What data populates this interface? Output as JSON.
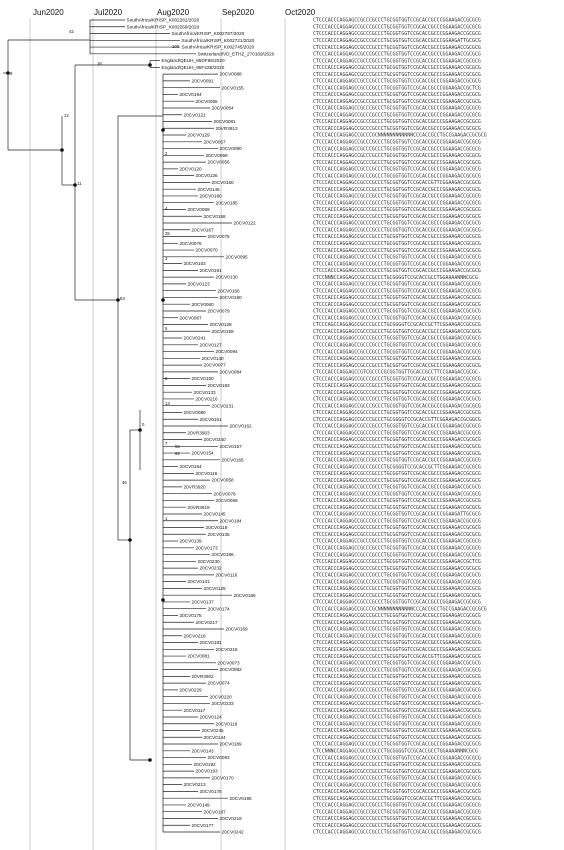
{
  "axis": {
    "months": [
      "Jun2020",
      "Jul2020",
      "Aug2020",
      "Sep2020",
      "Oct2020"
    ]
  },
  "support_values": [
    "8",
    "12",
    "11",
    "16",
    "42",
    "100",
    "63",
    "46",
    "0",
    "2",
    "4",
    "3",
    "5",
    "6",
    "7",
    "1",
    "13",
    "25",
    "55",
    "92"
  ],
  "tips": [
    "SouthAfrica/KRISP_K002281/2020",
    "SouthAfrica/KRISP_K002269/2020",
    "SouthAfrica/KRISP_K002787/2020",
    "SouthAfrica/KRISP_K002721/2020",
    "SouthAfrica/KRISP_K002745/2020",
    "Switzerland/VD_ETHZ_270169/2020",
    "England/QEUH_95DF86/2020",
    "England/QEUH_95F42B/2020",
    "20CV0088",
    "20CV0091",
    "20CV0155",
    "20CV0194",
    "20CV0055",
    "20CV0054",
    "20CV0121",
    "20CV0081",
    "20VR3913",
    "20CV0129",
    "20CV0057",
    "20CV0090",
    "20CV0059",
    "20CV0056",
    "20CV0120",
    "20CV0126",
    "20CV0160",
    "20CV0146",
    "20CV0180",
    "20CV0185",
    "20CV0069",
    "20CV0158",
    "20CV0122",
    "20CV0167",
    "20CV0075",
    "20CV0076",
    "20CV0070",
    "20CV0095",
    "20CV0153",
    "20CV0191",
    "20CV0130",
    "20CV0123",
    "20CV0166",
    "20CV0190",
    "20CV0060",
    "20CV0079",
    "20CV0067",
    "20CV0128",
    "20CV0159",
    "20CV0241",
    "20CV0127",
    "20CV0094",
    "20CV0140",
    "20CV0077",
    "20CV0084",
    "20CV0150",
    "20CV0183",
    "20CV0133",
    "20CV0216",
    "20CV0231",
    "20CV0080",
    "20CV0161",
    "20CV0162",
    "20VR3903",
    "20CV0240",
    "20CV0157",
    "20CV0154",
    "20CV0165",
    "20CV0164",
    "20CV0115",
    "20CV0058",
    "20VR3920",
    "20CV0078",
    "20CV0068",
    "20VR3919",
    "20CV0145",
    "20CV0184",
    "20CV0119",
    "20CV0135",
    "20CV0139",
    "20CV0173",
    "20CV0186",
    "20CV0230",
    "20CV0232",
    "20CV0116",
    "20CV0141",
    "20CV0125",
    "20CV0156",
    "20CV0137",
    "20CV0174",
    "20CV0175",
    "20CV0217",
    "20CV0169",
    "20CV0218",
    "20CV0181",
    "20CV0215",
    "20CV0081",
    "20CV0073",
    "20CV0082",
    "20VR3902",
    "20CV0074",
    "20CV0229",
    "20CV0220",
    "20CV0233",
    "20CV0117",
    "20CV0124",
    "20CV0118",
    "20CV0235",
    "20CV0144",
    "20CV0189",
    "20CV0143",
    "20CV0093",
    "20CV0192",
    "20CV0193",
    "20CV0170",
    "20CV0213",
    "20CV0178",
    "20CV0195",
    "20CV0149",
    "20CV0187",
    "20CV0219",
    "20CV0177",
    "20CV0242"
  ],
  "sequences": {
    "base": "CTCCCACCCAGGAGCCGCCCGCCCTGCGGTGGTCCGCACCGCCCGGAAGACCGCGCG",
    "variants": [
      "CTCCCACCCAGGAGCCGCCCGCCCTGCGGTGGTCCGCACCGCCCGGAAGACCGCTCG",
      "CTCCCACCCAGGAGCCGCCCGCCCTGCGGTGGTCCGCACCGCCCGGAAGACCGCGCG-",
      "CTCCCACCCAGGAGCCGTCGCCCCGCGGTGGTTGCACCGCCTTCCGAAGACCGCGC-",
      "CTCCCACCCAGGAGCCGCCCGCCCTGCGGTGGTCCGCACCGCCCGGAAGATTGCGCG",
      "CTCCCACCCAGGAGCCGCCCGCCCTGCGGTGGTCCGCACCGTTCGGAAGACCGCGCG",
      "CTCCCAGCCAGGAGCCGCCCGCCCTGCGGGGTCCGCACCGCTTCGGAAGACCGCGCG",
      "CTCCCACCCAGGAGCCGCCCGCCCTGCGGGGTCCGCACCGCTTCGGAAGACCGCGCG",
      "CTCCCACCCAGGAGCCGCCCGCNNNNNNNNNNNNCCCACCGCCTGCCGAAGACCGCGCG",
      "CTCCNNNCCAGGAGCCGCCCGCCCTGCGGGGTCCGCACCGCCTGGAAAANNNCGCG",
      "CTCCCACCCAGGAGCCGCCCGCCCTGCGGGGTCCGCACCGTTCGGAAGACCGCGGCG"
    ]
  }
}
